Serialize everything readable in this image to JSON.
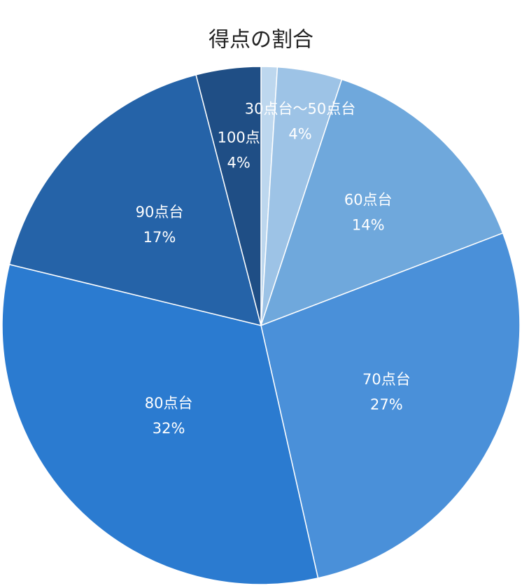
{
  "chart_data": {
    "type": "pie",
    "title": "得点の割合",
    "categories": [
      null,
      "30点台〜50点台",
      "60点台",
      "70点台",
      "80点台",
      "90点台",
      "100点"
    ],
    "values": [
      1,
      4,
      14,
      27,
      32,
      17,
      4
    ],
    "value_labels": [
      null,
      "4%",
      "14%",
      "27%",
      "32%",
      "17%",
      "4%"
    ],
    "colors": [
      "#bdd7ee",
      "#9dc3e6",
      "#6fa8dc",
      "#4a90d9",
      "#2b7bd0",
      "#2563a8",
      "#1f4e85"
    ]
  }
}
